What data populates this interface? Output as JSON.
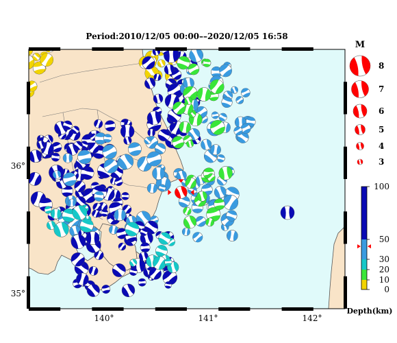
{
  "title": "Period:2010/12/05 00:00––2020/12/05 16:58",
  "map": {
    "lon_ticks": [
      {
        "label": "140°",
        "value": 140
      },
      {
        "label": "141°",
        "value": 141
      },
      {
        "label": "142°",
        "value": 142
      }
    ],
    "lat_ticks": [
      {
        "label": "36°",
        "value": 36
      },
      {
        "label": "35°",
        "value": 35
      }
    ],
    "lon_range": [
      139.35,
      142.3
    ],
    "lat_range": [
      34.9,
      36.95
    ],
    "colors": {
      "sea": "#e0fafa",
      "land": "#f9e4c8",
      "coast": "#555555"
    }
  },
  "magnitude_legend": {
    "title": "M",
    "items": [
      {
        "label": "8",
        "value": 8
      },
      {
        "label": "7",
        "value": 7
      },
      {
        "label": "6",
        "value": 6
      },
      {
        "label": "5",
        "value": 5
      },
      {
        "label": "4",
        "value": 4
      },
      {
        "label": "3",
        "value": 3
      }
    ]
  },
  "depth_scale": {
    "title": "Depth(km)",
    "ticks": [
      {
        "label": "100",
        "value": 100
      },
      {
        "label": "50",
        "value": 50
      },
      {
        "label": "30",
        "value": 30
      },
      {
        "label": "20",
        "value": 20
      },
      {
        "label": "10",
        "value": 10
      },
      {
        "label": "0",
        "value": 0
      }
    ],
    "marker_depth": 43,
    "bands": [
      {
        "from": 0,
        "to": 10,
        "color": "#f2d400"
      },
      {
        "from": 10,
        "to": 20,
        "color": "#39e639"
      },
      {
        "from": 20,
        "to": 30,
        "color": "#16c8c8"
      },
      {
        "from": 30,
        "to": 50,
        "color": "#3a9be0"
      },
      {
        "from": 50,
        "to": 100,
        "color": "#0a0ab4"
      }
    ]
  },
  "highlight_event": {
    "lon": 140.77,
    "lat": 35.82,
    "mag": 5.6,
    "color": "#ff0000"
  }
}
